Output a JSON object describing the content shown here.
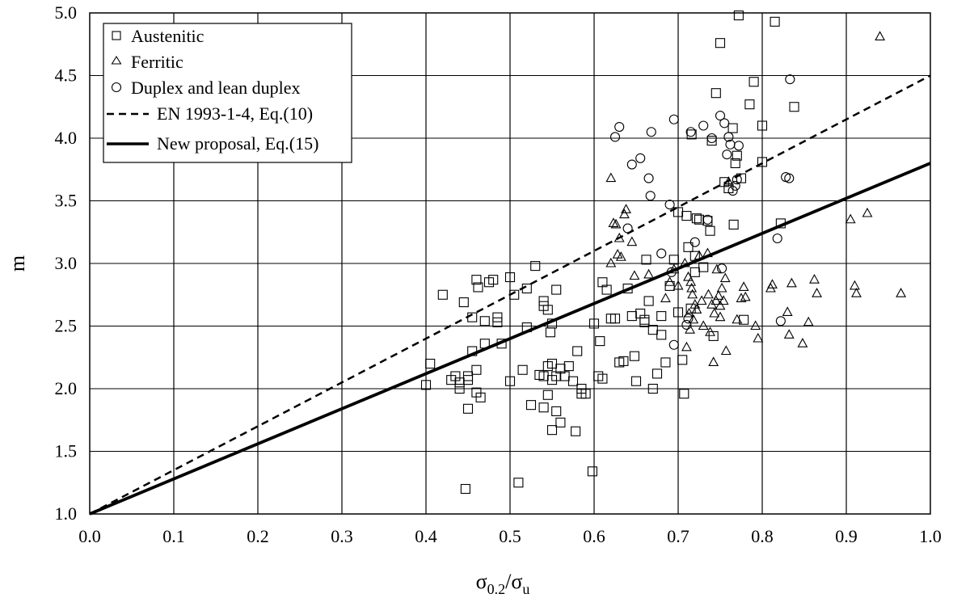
{
  "chart_data": {
    "type": "scatter",
    "xlabel": {
      "base": "σ",
      "sub1": "0.2",
      "mid": "/σ",
      "sub2": "u"
    },
    "ylabel": "m",
    "xlim": [
      0,
      1
    ],
    "ylim": [
      1,
      5
    ],
    "x_ticks": [
      "0.0",
      "0.1",
      "0.2",
      "0.3",
      "0.4",
      "0.5",
      "0.6",
      "0.7",
      "0.8",
      "0.9",
      "1.0"
    ],
    "y_ticks": [
      "1.0",
      "1.5",
      "2.0",
      "2.5",
      "3.0",
      "3.5",
      "4.0",
      "4.5",
      "5.0"
    ],
    "grid": {
      "vertical": true,
      "horizontal": true
    },
    "legend_position": "top-left",
    "series": [
      {
        "name": "Austenitic",
        "marker": "square",
        "points": [
          [
            0.4,
            2.03
          ],
          [
            0.405,
            2.2
          ],
          [
            0.42,
            2.75
          ],
          [
            0.43,
            2.07
          ],
          [
            0.435,
            2.1
          ],
          [
            0.44,
            2.05
          ],
          [
            0.44,
            2.0
          ],
          [
            0.445,
            2.69
          ],
          [
            0.447,
            1.2
          ],
          [
            0.45,
            2.1
          ],
          [
            0.45,
            1.84
          ],
          [
            0.45,
            2.07
          ],
          [
            0.455,
            2.3
          ],
          [
            0.455,
            2.57
          ],
          [
            0.46,
            1.97
          ],
          [
            0.46,
            2.15
          ],
          [
            0.46,
            2.87
          ],
          [
            0.462,
            2.81
          ],
          [
            0.465,
            1.93
          ],
          [
            0.47,
            2.36
          ],
          [
            0.47,
            2.54
          ],
          [
            0.475,
            2.85
          ],
          [
            0.48,
            2.87
          ],
          [
            0.485,
            2.57
          ],
          [
            0.485,
            2.53
          ],
          [
            0.49,
            2.36
          ],
          [
            0.5,
            2.89
          ],
          [
            0.5,
            2.06
          ],
          [
            0.505,
            2.75
          ],
          [
            0.51,
            1.25
          ],
          [
            0.515,
            2.15
          ],
          [
            0.52,
            2.49
          ],
          [
            0.52,
            2.8
          ],
          [
            0.525,
            1.87
          ],
          [
            0.53,
            2.98
          ],
          [
            0.535,
            2.11
          ],
          [
            0.54,
            2.1
          ],
          [
            0.54,
            2.7
          ],
          [
            0.54,
            2.66
          ],
          [
            0.54,
            1.85
          ],
          [
            0.545,
            2.63
          ],
          [
            0.545,
            2.18
          ],
          [
            0.545,
            1.95
          ],
          [
            0.548,
            2.45
          ],
          [
            0.55,
            1.67
          ],
          [
            0.55,
            2.07
          ],
          [
            0.55,
            2.52
          ],
          [
            0.55,
            2.2
          ],
          [
            0.555,
            2.1
          ],
          [
            0.555,
            2.79
          ],
          [
            0.555,
            1.82
          ],
          [
            0.56,
            2.16
          ],
          [
            0.56,
            1.73
          ],
          [
            0.565,
            2.1
          ],
          [
            0.57,
            2.18
          ],
          [
            0.575,
            2.06
          ],
          [
            0.578,
            1.66
          ],
          [
            0.58,
            2.3
          ],
          [
            0.585,
            1.96
          ],
          [
            0.585,
            2.0
          ],
          [
            0.59,
            1.96
          ],
          [
            0.598,
            1.34
          ],
          [
            0.6,
            2.52
          ],
          [
            0.605,
            2.1
          ],
          [
            0.607,
            2.38
          ],
          [
            0.61,
            2.08
          ],
          [
            0.61,
            2.85
          ],
          [
            0.615,
            2.79
          ],
          [
            0.62,
            2.56
          ],
          [
            0.625,
            2.56
          ],
          [
            0.63,
            2.21
          ],
          [
            0.635,
            2.22
          ],
          [
            0.64,
            2.8
          ],
          [
            0.645,
            2.58
          ],
          [
            0.648,
            2.26
          ],
          [
            0.65,
            2.06
          ],
          [
            0.655,
            2.6
          ],
          [
            0.66,
            2.55
          ],
          [
            0.66,
            2.53
          ],
          [
            0.662,
            3.03
          ],
          [
            0.665,
            2.7
          ],
          [
            0.67,
            2.0
          ],
          [
            0.67,
            2.47
          ],
          [
            0.675,
            2.12
          ],
          [
            0.68,
            2.58
          ],
          [
            0.68,
            2.43
          ],
          [
            0.685,
            2.21
          ],
          [
            0.69,
            2.82
          ],
          [
            0.695,
            3.03
          ],
          [
            0.7,
            2.61
          ],
          [
            0.7,
            3.41
          ],
          [
            0.705,
            2.23
          ],
          [
            0.707,
            1.96
          ],
          [
            0.71,
            3.38
          ],
          [
            0.712,
            3.13
          ],
          [
            0.715,
            2.64
          ],
          [
            0.716,
            4.03
          ],
          [
            0.72,
            3.06
          ],
          [
            0.72,
            2.93
          ],
          [
            0.722,
            3.36
          ],
          [
            0.725,
            3.35
          ],
          [
            0.73,
            2.97
          ],
          [
            0.735,
            3.34
          ],
          [
            0.738,
            3.26
          ],
          [
            0.74,
            3.98
          ],
          [
            0.742,
            2.42
          ],
          [
            0.745,
            4.36
          ],
          [
            0.75,
            4.76
          ],
          [
            0.755,
            3.65
          ],
          [
            0.76,
            3.6
          ],
          [
            0.765,
            4.08
          ],
          [
            0.766,
            3.31
          ],
          [
            0.768,
            3.8
          ],
          [
            0.77,
            3.86
          ],
          [
            0.772,
            4.98
          ],
          [
            0.775,
            3.68
          ],
          [
            0.778,
            2.55
          ],
          [
            0.785,
            4.27
          ],
          [
            0.79,
            4.45
          ],
          [
            0.8,
            4.1
          ],
          [
            0.8,
            3.81
          ],
          [
            0.815,
            4.93
          ],
          [
            0.822,
            3.32
          ],
          [
            0.838,
            4.25
          ]
        ]
      },
      {
        "name": "Ferritic",
        "marker": "triangle",
        "points": [
          [
            0.62,
            3.0
          ],
          [
            0.62,
            3.68
          ],
          [
            0.623,
            3.32
          ],
          [
            0.626,
            3.31
          ],
          [
            0.628,
            3.07
          ],
          [
            0.63,
            3.2
          ],
          [
            0.632,
            3.05
          ],
          [
            0.636,
            3.39
          ],
          [
            0.638,
            3.43
          ],
          [
            0.645,
            3.17
          ],
          [
            0.648,
            2.9
          ],
          [
            0.665,
            2.91
          ],
          [
            0.685,
            2.72
          ],
          [
            0.69,
            2.85
          ],
          [
            0.695,
            2.95
          ],
          [
            0.7,
            2.82
          ],
          [
            0.708,
            3.0
          ],
          [
            0.71,
            2.33
          ],
          [
            0.712,
            2.89
          ],
          [
            0.713,
            2.6
          ],
          [
            0.714,
            2.47
          ],
          [
            0.715,
            2.85
          ],
          [
            0.716,
            2.8
          ],
          [
            0.717,
            2.75
          ],
          [
            0.718,
            2.55
          ],
          [
            0.72,
            2.67
          ],
          [
            0.722,
            2.63
          ],
          [
            0.725,
            3.06
          ],
          [
            0.728,
            2.7
          ],
          [
            0.73,
            2.5
          ],
          [
            0.735,
            3.08
          ],
          [
            0.736,
            2.75
          ],
          [
            0.738,
            2.45
          ],
          [
            0.74,
            2.67
          ],
          [
            0.742,
            2.21
          ],
          [
            0.743,
            2.6
          ],
          [
            0.745,
            2.7
          ],
          [
            0.746,
            2.95
          ],
          [
            0.748,
            2.74
          ],
          [
            0.75,
            2.66
          ],
          [
            0.75,
            2.57
          ],
          [
            0.752,
            2.8
          ],
          [
            0.754,
            2.7
          ],
          [
            0.756,
            2.88
          ],
          [
            0.757,
            2.3
          ],
          [
            0.76,
            3.65
          ],
          [
            0.77,
            2.55
          ],
          [
            0.775,
            2.72
          ],
          [
            0.778,
            2.81
          ],
          [
            0.78,
            2.73
          ],
          [
            0.792,
            2.5
          ],
          [
            0.795,
            2.4
          ],
          [
            0.81,
            2.8
          ],
          [
            0.812,
            2.83
          ],
          [
            0.83,
            2.61
          ],
          [
            0.832,
            2.43
          ],
          [
            0.835,
            2.84
          ],
          [
            0.848,
            2.36
          ],
          [
            0.855,
            2.53
          ],
          [
            0.862,
            2.87
          ],
          [
            0.865,
            2.76
          ],
          [
            0.905,
            3.35
          ],
          [
            0.91,
            2.82
          ],
          [
            0.912,
            2.76
          ],
          [
            0.925,
            3.4
          ],
          [
            0.94,
            4.81
          ],
          [
            0.965,
            2.76
          ]
        ]
      },
      {
        "name": "Duplex and lean duplex",
        "marker": "circle",
        "points": [
          [
            0.625,
            4.01
          ],
          [
            0.63,
            4.09
          ],
          [
            0.64,
            3.28
          ],
          [
            0.645,
            3.79
          ],
          [
            0.655,
            3.84
          ],
          [
            0.665,
            3.68
          ],
          [
            0.667,
            3.54
          ],
          [
            0.668,
            4.05
          ],
          [
            0.68,
            3.08
          ],
          [
            0.69,
            3.47
          ],
          [
            0.692,
            2.93
          ],
          [
            0.695,
            2.35
          ],
          [
            0.695,
            4.15
          ],
          [
            0.71,
            2.51
          ],
          [
            0.712,
            2.56
          ],
          [
            0.715,
            4.05
          ],
          [
            0.72,
            3.17
          ],
          [
            0.73,
            4.1
          ],
          [
            0.735,
            3.35
          ],
          [
            0.74,
            4.0
          ],
          [
            0.75,
            4.18
          ],
          [
            0.752,
            2.96
          ],
          [
            0.755,
            4.12
          ],
          [
            0.758,
            3.87
          ],
          [
            0.76,
            4.01
          ],
          [
            0.762,
            3.95
          ],
          [
            0.765,
            3.58
          ],
          [
            0.768,
            3.62
          ],
          [
            0.77,
            3.67
          ],
          [
            0.772,
            3.94
          ],
          [
            0.818,
            3.2
          ],
          [
            0.822,
            2.54
          ],
          [
            0.828,
            3.69
          ],
          [
            0.832,
            3.68
          ],
          [
            0.833,
            4.47
          ]
        ]
      },
      {
        "name": "EN 1993-1-4, Eq.(10)",
        "line": "dashed",
        "points": [
          [
            0,
            1.0
          ],
          [
            1.0,
            4.5
          ]
        ]
      },
      {
        "name": "New proposal, Eq.(15)",
        "line": "solid",
        "points": [
          [
            0,
            1.0
          ],
          [
            1.0,
            3.8
          ]
        ]
      }
    ]
  }
}
